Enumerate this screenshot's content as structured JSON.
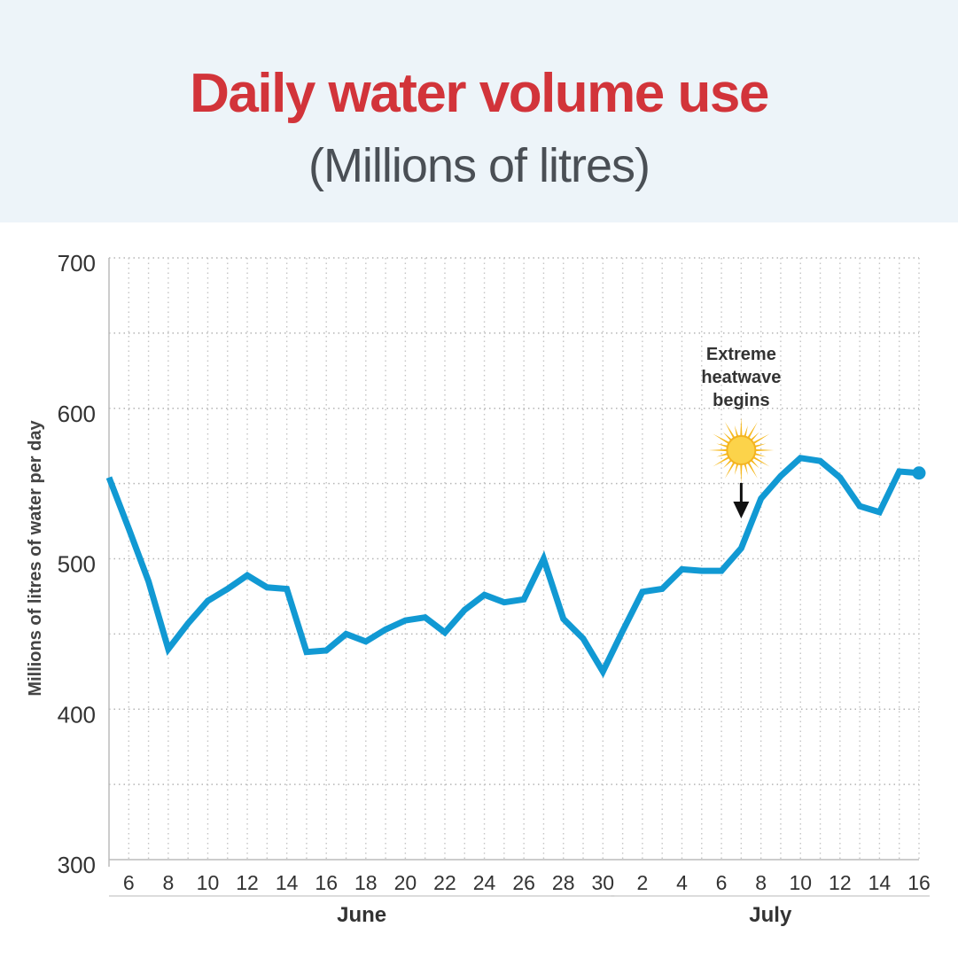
{
  "title": "Daily water volume use",
  "subtitle": "(Millions of litres)",
  "chart_data": {
    "type": "line",
    "title": "Daily water volume use",
    "subtitle": "(Millions of litres)",
    "ylabel": "Millions of litres of water per day",
    "xlabel": "",
    "ylim": [
      300,
      700
    ],
    "yticks": [
      300,
      400,
      500,
      600,
      700
    ],
    "grid": true,
    "months": [
      {
        "label": "June",
        "start": "2024-06-05",
        "end": "2024-06-30"
      },
      {
        "label": "July",
        "start": "2024-07-01",
        "end": "2024-07-16"
      }
    ],
    "x_tick_labels": [
      "6",
      "8",
      "10",
      "12",
      "14",
      "16",
      "18",
      "20",
      "22",
      "24",
      "26",
      "28",
      "30",
      "2",
      "4",
      "6",
      "8",
      "10",
      "12",
      "14",
      "16"
    ],
    "x": [
      "2024-06-05",
      "2024-06-06",
      "2024-06-07",
      "2024-06-08",
      "2024-06-09",
      "2024-06-10",
      "2024-06-11",
      "2024-06-12",
      "2024-06-13",
      "2024-06-14",
      "2024-06-15",
      "2024-06-16",
      "2024-06-17",
      "2024-06-18",
      "2024-06-19",
      "2024-06-20",
      "2024-06-21",
      "2024-06-22",
      "2024-06-23",
      "2024-06-24",
      "2024-06-25",
      "2024-06-26",
      "2024-06-27",
      "2024-06-28",
      "2024-06-29",
      "2024-06-30",
      "2024-07-01",
      "2024-07-02",
      "2024-07-03",
      "2024-07-04",
      "2024-07-05",
      "2024-07-06",
      "2024-07-07",
      "2024-07-08",
      "2024-07-09",
      "2024-07-10",
      "2024-07-11",
      "2024-07-12",
      "2024-07-13",
      "2024-07-14",
      "2024-07-15",
      "2024-07-16"
    ],
    "series": [
      {
        "values": [
          554,
          520,
          485,
          440,
          457,
          472,
          480,
          489,
          481,
          480,
          438,
          439,
          450,
          445,
          453,
          459,
          461,
          451,
          466,
          476,
          471,
          473,
          500,
          460,
          447,
          425,
          452,
          478,
          480,
          493,
          492,
          492,
          507,
          540,
          555,
          567,
          565,
          554,
          535,
          531,
          558,
          557
        ]
      }
    ],
    "line_color": "#1199d3",
    "annotation": {
      "lines": [
        "Extreme",
        "heatwave",
        "begins"
      ],
      "date": "2024-07-07",
      "icon": "sun-icon"
    }
  }
}
